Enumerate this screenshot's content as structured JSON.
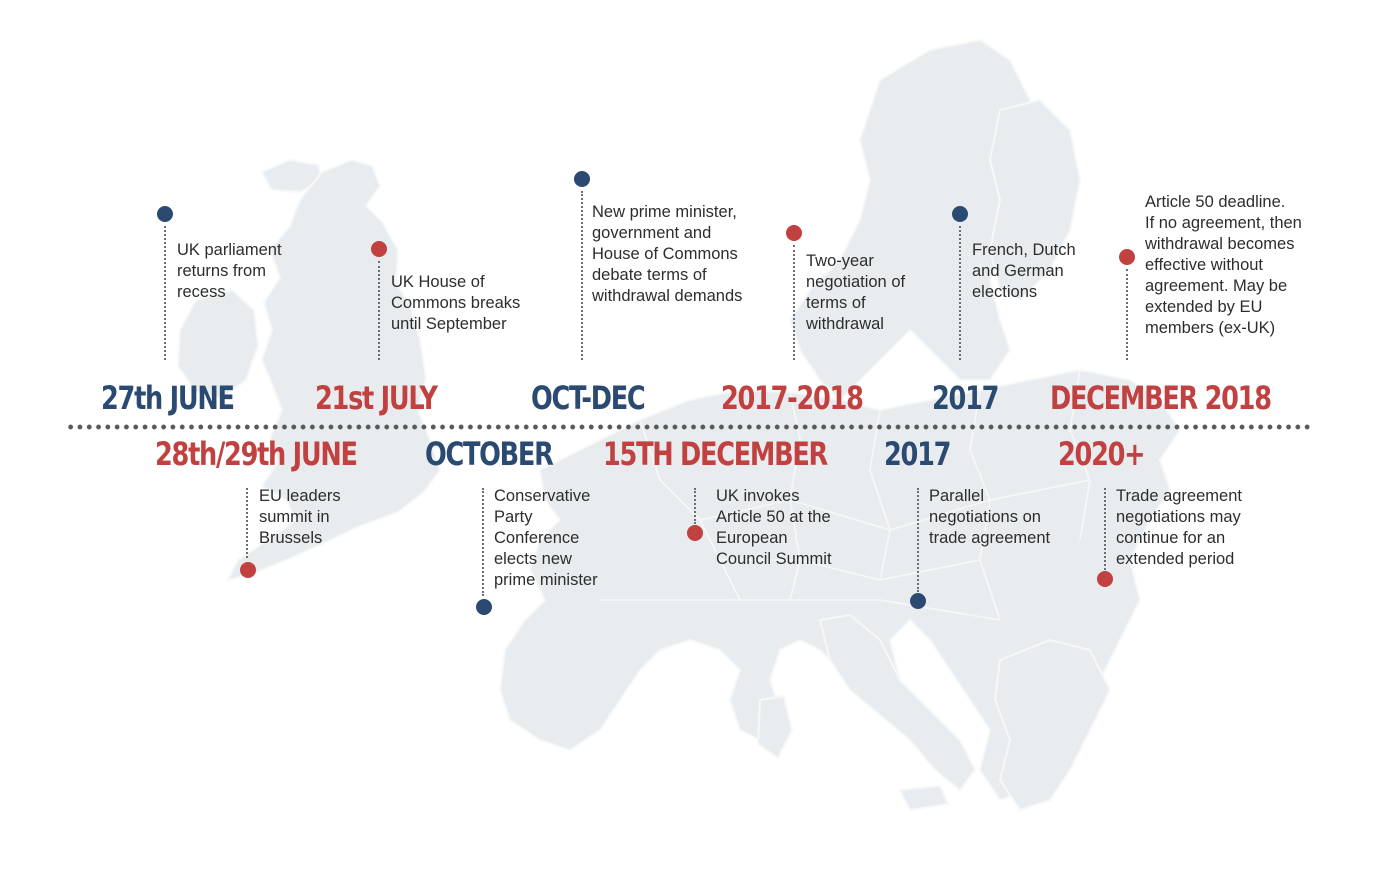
{
  "events": [
    {
      "date": "27th JUNE",
      "color": "#2b4a72",
      "lines": [
        "UK parliament",
        "returns from",
        "recess"
      ]
    },
    {
      "date": "28th/29th JUNE",
      "color": "#c0413f",
      "lines": [
        "EU leaders",
        "summit in",
        "Brussels"
      ]
    },
    {
      "date": "21st JULY",
      "color": "#c0413f",
      "lines": [
        "UK House of",
        "Commons breaks",
        "until September"
      ]
    },
    {
      "date": "OCTOBER",
      "color": "#2b4a72",
      "lines": [
        "Conservative",
        "Party",
        "Conference",
        "elects new",
        "prime minister"
      ]
    },
    {
      "date": "OCT-DEC",
      "color": "#2b4a72",
      "lines": [
        "New prime minister,",
        "government and",
        "House of Commons",
        "debate terms of",
        "withdrawal demands"
      ]
    },
    {
      "date": "15TH DECEMBER",
      "color": "#c0413f",
      "lines": [
        "UK invokes",
        "Article 50 at the",
        "European",
        "Council Summit"
      ]
    },
    {
      "date": "2017-2018",
      "color": "#c0413f",
      "lines": [
        "Two-year",
        "negotiation of",
        "terms of",
        "withdrawal"
      ]
    },
    {
      "date": "2017",
      "color": "#2b4a72",
      "lines": [
        "Parallel",
        "negotiations on",
        "trade agreement"
      ]
    },
    {
      "date": "2017",
      "color": "#2b4a72",
      "lines": [
        "French, Dutch",
        "and German",
        "elections"
      ]
    },
    {
      "date": "DECEMBER 2018",
      "color": "#c0413f",
      "lines": [
        "Article 50 deadline.",
        "If no agreement, then",
        "withdrawal becomes",
        "effective without",
        "agreement. May be",
        "extended by EU",
        "members (ex-UK)"
      ]
    },
    {
      "date": "2020+",
      "color": "#c0413f",
      "lines": [
        "Trade agreement",
        "negotiations may",
        "continue for an",
        "extended period"
      ]
    }
  ]
}
